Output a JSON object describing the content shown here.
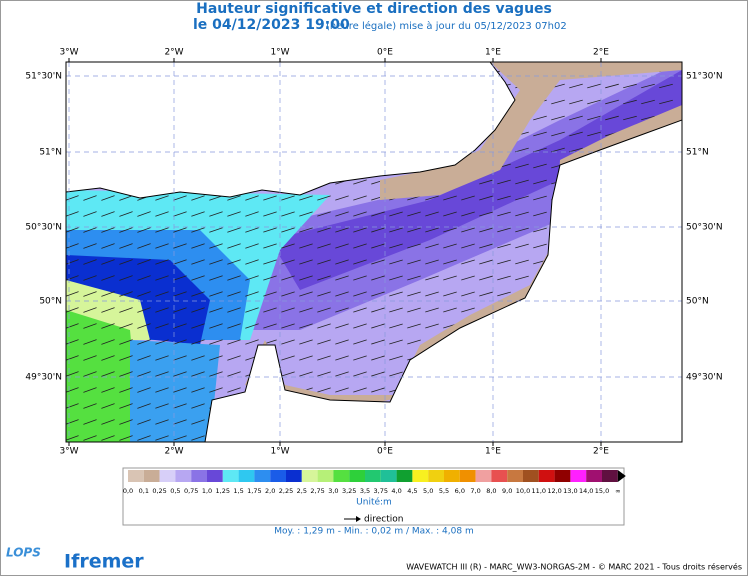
{
  "header": {
    "title": "Hauteur significative et direction des vagues",
    "date": "le 04/12/2023 19:00",
    "update": "(heure légale) mise à jour du 05/12/2023 07h02"
  },
  "map": {
    "longitudes": [
      "3°W",
      "2°W",
      "1°W",
      "0°E",
      "1°E",
      "2°E"
    ],
    "latitudes": [
      "51°30'N",
      "51°N",
      "50°30'N",
      "50°N",
      "49°30'N"
    ]
  },
  "legend": {
    "labels": [
      "0,0",
      "0,1",
      "0,25",
      "0,5",
      "0,75",
      "1,0",
      "1,25",
      "1,5",
      "1,75",
      "2,0",
      "2,25",
      "2,5",
      "2,75",
      "3,0",
      "3,25",
      "3,5",
      "3,75",
      "4,0",
      "4,5",
      "5,0",
      "5,5",
      "6,0",
      "7,0",
      "8,0",
      "9,0",
      "10,0",
      "11,0",
      "12,0",
      "13,0",
      "14,0",
      "15,0",
      "∞"
    ],
    "unit": "Unité:m",
    "direction": "direction",
    "stats": "Moy. : 1,29 m   -   Min. : 0,02 m / Max. : 4,08 m"
  },
  "footer": {
    "logo1": "LOPS",
    "logo2": "Ifremer",
    "credit": "WAVEWATCH III (R) - MARC_WW3-NORGAS-2M - © MARC 2021 - Tous droits réservés"
  }
}
